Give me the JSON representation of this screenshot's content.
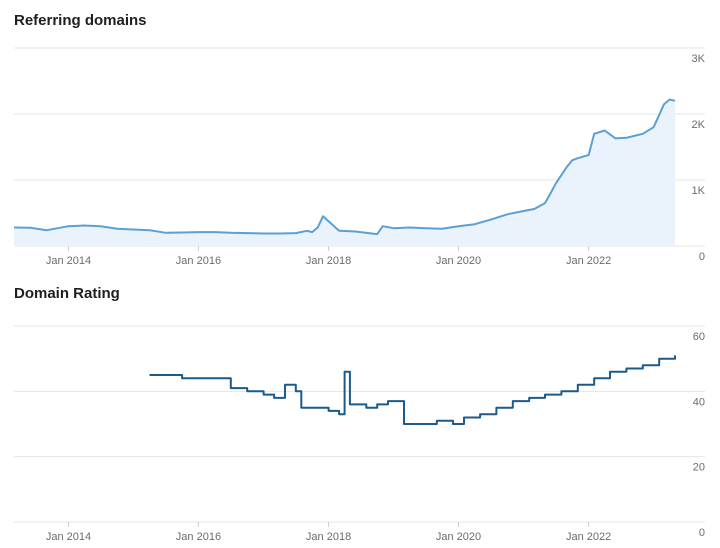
{
  "charts": {
    "referring_domains_title": "Referring domains",
    "domain_rating_title": "Domain Rating"
  },
  "colors": {
    "rd_line": "#5b9fd4",
    "rd_fill": "#eaf3fc",
    "dr_line": "#1d5a8c",
    "grid": "#e6e6e6",
    "tick": "#6b6b6b"
  },
  "chart_data": [
    {
      "type": "area",
      "title": "Referring domains",
      "xlabel": "",
      "ylabel": "",
      "x_ticks": [
        "Jan 2014",
        "Jan 2016",
        "Jan 2018",
        "Jan 2020",
        "Jan 2022"
      ],
      "y_ticks": [
        "0",
        "1K",
        "2K",
        "3K"
      ],
      "ylim": [
        0,
        3000
      ],
      "xlim": [
        "2013-03-01",
        "2023-05-01"
      ],
      "grid": true,
      "series": [
        {
          "x": [
            "2013-03-01",
            "2013-06-01",
            "2013-09-01",
            "2014-01-01",
            "2014-04-01",
            "2014-07-01",
            "2014-10-01",
            "2015-01-01",
            "2015-04-01",
            "2015-07-01",
            "2015-10-01",
            "2016-01-01",
            "2016-04-01",
            "2016-07-01",
            "2016-10-01",
            "2017-01-01",
            "2017-04-01",
            "2017-07-01",
            "2017-09-01",
            "2017-10-01",
            "2017-11-01",
            "2017-12-01",
            "2018-03-01",
            "2018-06-01",
            "2018-09-01",
            "2018-10-01",
            "2018-11-01",
            "2019-01-01",
            "2019-04-01",
            "2019-07-01",
            "2019-10-01",
            "2020-01-01",
            "2020-04-01",
            "2020-07-01",
            "2020-10-01",
            "2021-01-01",
            "2021-03-01",
            "2021-05-01",
            "2021-06-01",
            "2021-07-01",
            "2021-09-01",
            "2021-10-01",
            "2021-11-01",
            "2022-01-01",
            "2022-02-01",
            "2022-04-01",
            "2022-06-01",
            "2022-08-01",
            "2022-10-01",
            "2022-11-01",
            "2023-01-01",
            "2023-03-01",
            "2023-04-01",
            "2023-05-01"
          ],
          "values": [
            280,
            275,
            240,
            300,
            310,
            300,
            260,
            250,
            240,
            200,
            205,
            210,
            210,
            200,
            195,
            190,
            190,
            195,
            230,
            210,
            280,
            450,
            230,
            220,
            190,
            180,
            300,
            270,
            280,
            270,
            260,
            300,
            330,
            400,
            480,
            530,
            560,
            650,
            800,
            950,
            1200,
            1300,
            1330,
            1380,
            1700,
            1750,
            1630,
            1640,
            1680,
            1700,
            1800,
            2150,
            2220,
            2200
          ]
        }
      ]
    },
    {
      "type": "line",
      "title": "Domain Rating",
      "xlabel": "",
      "ylabel": "",
      "x_ticks": [
        "Jan 2014",
        "Jan 2016",
        "Jan 2018",
        "Jan 2020",
        "Jan 2022"
      ],
      "y_ticks": [
        "0",
        "20",
        "40",
        "60"
      ],
      "ylim": [
        0,
        60
      ],
      "xlim": [
        "2013-03-01",
        "2023-05-01"
      ],
      "grid": true,
      "series": [
        {
          "x": [
            "2015-04-01",
            "2015-07-01",
            "2015-10-01",
            "2016-01-01",
            "2016-04-01",
            "2016-07-01",
            "2016-10-01",
            "2017-01-01",
            "2017-03-01",
            "2017-05-01",
            "2017-07-01",
            "2017-08-01",
            "2017-10-01",
            "2018-01-01",
            "2018-03-01",
            "2018-04-01",
            "2018-05-01",
            "2018-08-01",
            "2018-10-01",
            "2018-12-01",
            "2019-03-01",
            "2019-06-01",
            "2019-09-01",
            "2019-12-01",
            "2020-02-01",
            "2020-05-01",
            "2020-08-01",
            "2020-11-01",
            "2021-02-01",
            "2021-05-01",
            "2021-08-01",
            "2021-11-01",
            "2022-02-01",
            "2022-05-01",
            "2022-08-01",
            "2022-11-01",
            "2023-02-01",
            "2023-05-01"
          ],
          "values": [
            45,
            45,
            44,
            44,
            44,
            41,
            40,
            39,
            38,
            42,
            40,
            35,
            35,
            34,
            33,
            46,
            36,
            35,
            36,
            37,
            30,
            30,
            31,
            30,
            32,
            33,
            35,
            37,
            38,
            39,
            40,
            42,
            44,
            46,
            47,
            48,
            50,
            51
          ]
        }
      ]
    }
  ]
}
